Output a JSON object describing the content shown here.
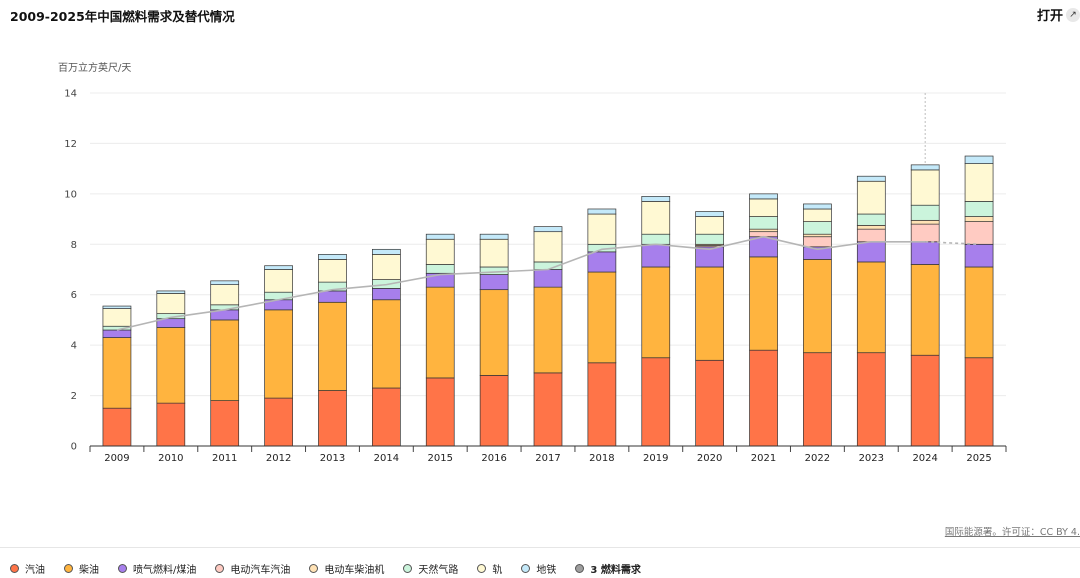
{
  "header": {
    "title": "2009-2025年中国燃料需求及替代情况",
    "open_label": "打开",
    "expand_icon": "expand-arrow-icon"
  },
  "footer": {
    "source": "国际能源署。许可证：CC BY 4."
  },
  "chart_data": {
    "type": "bar",
    "stacked": true,
    "ylabel": "百万立方英尺/天",
    "ylim": [
      0,
      14
    ],
    "yticks": [
      0,
      2,
      4,
      6,
      8,
      10,
      12,
      14
    ],
    "grid": true,
    "legend_position": "bottom-left",
    "categories": [
      "2009",
      "2010",
      "2011",
      "2012",
      "2013",
      "2014",
      "2015",
      "2016",
      "2017",
      "2018",
      "2019",
      "2020",
      "2021",
      "2022",
      "2023",
      "2024",
      "2025"
    ],
    "series": [
      {
        "name": "汽油",
        "color": "#ff7448",
        "values": [
          1.5,
          1.7,
          1.8,
          1.9,
          2.2,
          2.3,
          2.7,
          2.8,
          2.9,
          3.3,
          3.5,
          3.4,
          3.8,
          3.7,
          3.7,
          3.6,
          3.5
        ]
      },
      {
        "name": "柴油",
        "color": "#ffb43f",
        "values": [
          2.8,
          3.0,
          3.2,
          3.5,
          3.5,
          3.5,
          3.6,
          3.4,
          3.4,
          3.6,
          3.6,
          3.7,
          3.7,
          3.7,
          3.6,
          3.6,
          3.6
        ]
      },
      {
        "name": "喷气燃料/煤油",
        "color": "#a77fec",
        "values": [
          0.3,
          0.35,
          0.4,
          0.4,
          0.45,
          0.45,
          0.55,
          0.6,
          0.7,
          0.8,
          0.9,
          0.8,
          0.8,
          0.5,
          0.8,
          0.9,
          0.9
        ]
      },
      {
        "name": "电动汽车汽油",
        "color": "#ffcbc2",
        "values": [
          0,
          0,
          0,
          0,
          0,
          0,
          0,
          0,
          0,
          0,
          0,
          0.05,
          0.2,
          0.4,
          0.5,
          0.7,
          0.9
        ]
      },
      {
        "name": "电动车柴油机",
        "color": "#ffe2b5",
        "values": [
          0,
          0,
          0,
          0,
          0,
          0,
          0,
          0,
          0,
          0,
          0,
          0.05,
          0.1,
          0.1,
          0.15,
          0.15,
          0.2
        ]
      },
      {
        "name": "天然气路",
        "color": "#cbf4dc",
        "values": [
          0.15,
          0.2,
          0.2,
          0.3,
          0.35,
          0.35,
          0.35,
          0.3,
          0.3,
          0.3,
          0.4,
          0.4,
          0.5,
          0.5,
          0.45,
          0.6,
          0.6
        ]
      },
      {
        "name": "轨",
        "color": "#fff9d3",
        "values": [
          0.7,
          0.8,
          0.8,
          0.9,
          0.9,
          1.0,
          1.0,
          1.1,
          1.2,
          1.2,
          1.3,
          0.7,
          0.7,
          0.5,
          1.3,
          1.4,
          1.5
        ]
      },
      {
        "name": "地铁",
        "color": "#c4e9f9",
        "values": [
          0.1,
          0.1,
          0.15,
          0.15,
          0.2,
          0.2,
          0.2,
          0.2,
          0.2,
          0.2,
          0.2,
          0.2,
          0.2,
          0.2,
          0.2,
          0.2,
          0.3
        ]
      },
      {
        "name": "3 燃料需求",
        "color": "#9e9e9e",
        "type": "line",
        "values": [
          4.6,
          5.1,
          5.4,
          5.8,
          6.2,
          6.4,
          6.8,
          6.9,
          7.0,
          7.8,
          8.0,
          7.8,
          8.3,
          7.8,
          8.1,
          8.1,
          8.0
        ]
      }
    ],
    "highlight_category": "2024"
  }
}
